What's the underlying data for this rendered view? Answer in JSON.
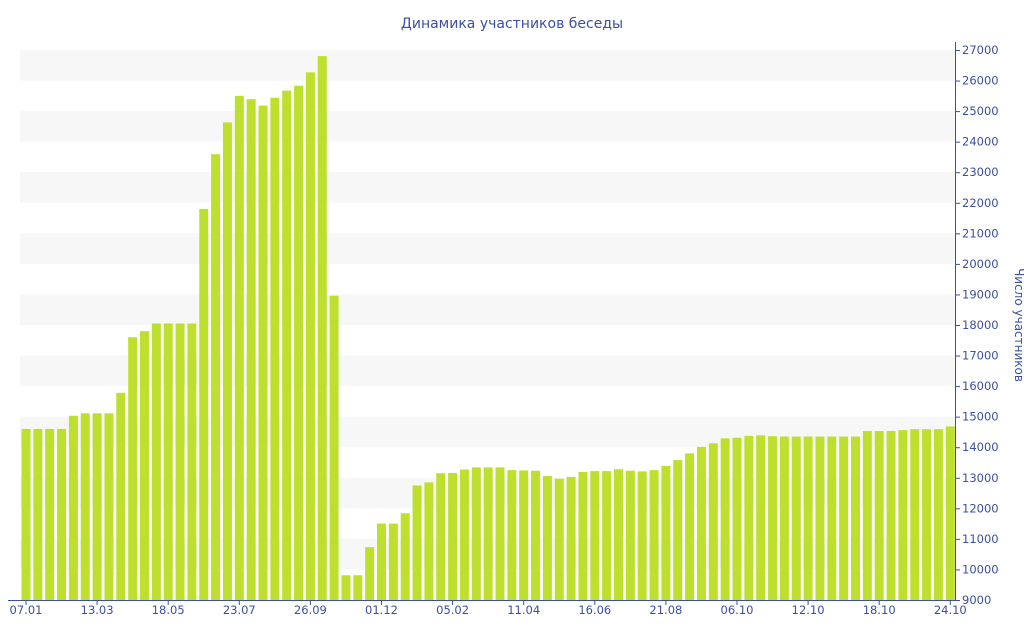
{
  "chart_data": {
    "type": "bar",
    "title": "Динамика участников беседы",
    "xlabel": "",
    "ylabel": "Число участников",
    "ylim": [
      9000,
      27000
    ],
    "y_ticks": [
      9000,
      10000,
      11000,
      12000,
      13000,
      14000,
      15000,
      16000,
      17000,
      18000,
      19000,
      20000,
      21000,
      22000,
      23000,
      24000,
      25000,
      26000,
      27000
    ],
    "y_axis_side": "right",
    "grid": "alternating horizontal bands",
    "legend": "none",
    "x_tick_labels": [
      {
        "index": 0,
        "label": "07.01"
      },
      {
        "index": 6,
        "label": "13.03"
      },
      {
        "index": 12,
        "label": "18.05"
      },
      {
        "index": 18,
        "label": "23.07"
      },
      {
        "index": 24,
        "label": "26.09"
      },
      {
        "index": 30,
        "label": "01.12"
      },
      {
        "index": 36,
        "label": "05.02"
      },
      {
        "index": 42,
        "label": "11.04"
      },
      {
        "index": 48,
        "label": "16.06"
      },
      {
        "index": 54,
        "label": "21.08"
      },
      {
        "index": 60,
        "label": "06.10"
      },
      {
        "index": 66,
        "label": "12.10"
      },
      {
        "index": 72,
        "label": "18.10"
      },
      {
        "index": 78,
        "label": "24.10"
      }
    ],
    "values": [
      14600,
      14600,
      14600,
      14600,
      15030,
      15110,
      15110,
      15110,
      15780,
      17600,
      17800,
      18050,
      18050,
      18050,
      18050,
      21800,
      23590,
      24630,
      25500,
      25390,
      25180,
      25440,
      25670,
      25830,
      26270,
      26800,
      18960,
      9810,
      9810,
      10730,
      11500,
      11500,
      11840,
      12750,
      12850,
      13150,
      13160,
      13270,
      13340,
      13340,
      13340,
      13250,
      13240,
      13230,
      13060,
      12970,
      13030,
      13190,
      13220,
      13220,
      13280,
      13230,
      13210,
      13250,
      13390,
      13580,
      13800,
      14010,
      14130,
      14290,
      14310,
      14370,
      14390,
      14360,
      14350,
      14350,
      14350,
      14350,
      14350,
      14350,
      14350,
      14530,
      14530,
      14530,
      14560,
      14590,
      14590,
      14590,
      14680
    ],
    "colors": {
      "bar": "#bde02f",
      "axis": "#3d4f9f",
      "band": "#f7f7f7"
    }
  }
}
